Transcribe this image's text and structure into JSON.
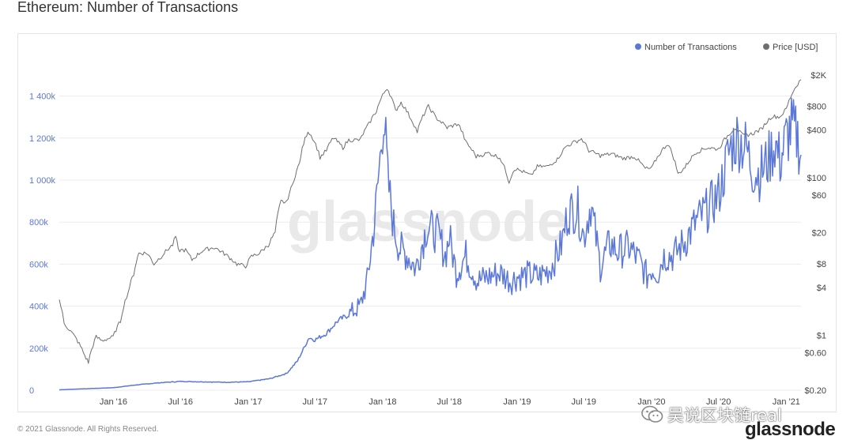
{
  "page": {
    "title": "Ethereum: Number of Transactions",
    "footer_copyright": "© 2021 Glassnode. All Rights Reserved.",
    "footer_logo": "glassnode",
    "watermark": "glassnode",
    "wechat_overlay": "吴说区块链real"
  },
  "colors": {
    "transactions": "#5b78d8",
    "price": "#6e6e6e",
    "grid": "#ececec",
    "left_axis_text": "#5b78d8",
    "right_axis_text": "#444444",
    "watermark": "#e9e9e9"
  },
  "chart_data": {
    "type": "line",
    "title": "Ethereum: Number of Transactions",
    "legend": {
      "placement": "top-right",
      "entries": [
        {
          "label": "Number of Transactions",
          "color": "#5b78d8",
          "marker": "dot"
        },
        {
          "label": "Price [USD]",
          "color": "#6e6e6e",
          "marker": "dot"
        }
      ]
    },
    "grid": true,
    "x_axis": {
      "type": "date",
      "range": [
        "2015-08-07",
        "2021-02-10"
      ],
      "ticks": [
        {
          "date": "2016-01-01",
          "label": "Jan '16"
        },
        {
          "date": "2016-07-01",
          "label": "Jul '16"
        },
        {
          "date": "2017-01-01",
          "label": "Jan '17"
        },
        {
          "date": "2017-07-01",
          "label": "Jul '17"
        },
        {
          "date": "2018-01-01",
          "label": "Jan '18"
        },
        {
          "date": "2018-07-01",
          "label": "Jul '18"
        },
        {
          "date": "2019-01-01",
          "label": "Jan '19"
        },
        {
          "date": "2019-07-01",
          "label": "Jul '19"
        },
        {
          "date": "2020-01-01",
          "label": "Jan '20"
        },
        {
          "date": "2020-07-01",
          "label": "Jul '20"
        },
        {
          "date": "2021-01-01",
          "label": "Jan '21"
        }
      ]
    },
    "y_left": {
      "scale": "linear",
      "range": [
        0,
        1500000
      ],
      "ticks": [
        {
          "value": 0,
          "label": "0"
        },
        {
          "value": 200000,
          "label": "200k"
        },
        {
          "value": 400000,
          "label": "400k"
        },
        {
          "value": 600000,
          "label": "600k"
        },
        {
          "value": 800000,
          "label": "800k"
        },
        {
          "value": 1000000,
          "label": "1 000k"
        },
        {
          "value": 1200000,
          "label": "1 200k"
        },
        {
          "value": 1400000,
          "label": "1 400k"
        }
      ]
    },
    "y_right": {
      "scale": "log",
      "range": [
        0.2,
        2000
      ],
      "ticks": [
        {
          "value": 0.2,
          "label": "$0.20"
        },
        {
          "value": 0.6,
          "label": "$0.60"
        },
        {
          "value": 1,
          "label": "$1"
        },
        {
          "value": 4,
          "label": "$4"
        },
        {
          "value": 8,
          "label": "$8"
        },
        {
          "value": 20,
          "label": "$20"
        },
        {
          "value": 60,
          "label": "$60"
        },
        {
          "value": 100,
          "label": "$100"
        },
        {
          "value": 400,
          "label": "$400"
        },
        {
          "value": 800,
          "label": "$800"
        },
        {
          "value": 2000,
          "label": "$2K"
        }
      ]
    },
    "series": [
      {
        "name": "Number of Transactions",
        "axis": "left",
        "color": "#5b78d8",
        "points": [
          [
            "2015-08-07",
            2000
          ],
          [
            "2015-10-01",
            6000
          ],
          [
            "2016-01-01",
            12000
          ],
          [
            "2016-03-01",
            25000
          ],
          [
            "2016-05-01",
            35000
          ],
          [
            "2016-07-01",
            42000
          ],
          [
            "2016-09-01",
            40000
          ],
          [
            "2016-11-01",
            38000
          ],
          [
            "2017-01-01",
            40000
          ],
          [
            "2017-03-01",
            55000
          ],
          [
            "2017-04-15",
            80000
          ],
          [
            "2017-05-15",
            140000
          ],
          [
            "2017-06-15",
            250000
          ],
          [
            "2017-07-01",
            240000
          ],
          [
            "2017-08-01",
            270000
          ],
          [
            "2017-09-01",
            330000
          ],
          [
            "2017-10-01",
            360000
          ],
          [
            "2017-11-01",
            400000
          ],
          [
            "2017-11-20",
            520000
          ],
          [
            "2017-12-10",
            800000
          ],
          [
            "2017-12-25",
            1100000
          ],
          [
            "2018-01-04",
            1340000
          ],
          [
            "2018-01-15",
            1000000
          ],
          [
            "2018-01-31",
            780000
          ],
          [
            "2018-02-15",
            680000
          ],
          [
            "2018-03-10",
            640000
          ],
          [
            "2018-04-01",
            580000
          ],
          [
            "2018-05-01",
            780000
          ],
          [
            "2018-06-01",
            740000
          ],
          [
            "2018-06-20",
            640000
          ],
          [
            "2018-07-01",
            730000
          ],
          [
            "2018-07-20",
            560000
          ],
          [
            "2018-08-15",
            640000
          ],
          [
            "2018-09-15",
            520000
          ],
          [
            "2018-10-15",
            540000
          ],
          [
            "2018-11-15",
            560000
          ],
          [
            "2018-12-15",
            520000
          ],
          [
            "2019-01-01",
            540000
          ],
          [
            "2019-02-01",
            550000
          ],
          [
            "2019-03-01",
            540000
          ],
          [
            "2019-04-01",
            580000
          ],
          [
            "2019-05-01",
            690000
          ],
          [
            "2019-05-20",
            850000
          ],
          [
            "2019-06-15",
            860000
          ],
          [
            "2019-07-01",
            730000
          ],
          [
            "2019-07-20",
            890000
          ],
          [
            "2019-08-15",
            590000
          ],
          [
            "2019-09-10",
            700000
          ],
          [
            "2019-10-01",
            660000
          ],
          [
            "2019-11-01",
            680000
          ],
          [
            "2019-12-01",
            610000
          ],
          [
            "2019-12-20",
            540000
          ],
          [
            "2020-01-01",
            580000
          ],
          [
            "2020-01-20",
            560000
          ],
          [
            "2020-02-01",
            640000
          ],
          [
            "2020-03-01",
            640000
          ],
          [
            "2020-04-01",
            710000
          ],
          [
            "2020-05-01",
            800000
          ],
          [
            "2020-06-01",
            860000
          ],
          [
            "2020-07-01",
            930000
          ],
          [
            "2020-08-01",
            1150000
          ],
          [
            "2020-08-20",
            1200000
          ],
          [
            "2020-09-15",
            1150000
          ],
          [
            "2020-10-01",
            1050000
          ],
          [
            "2020-10-20",
            1030000
          ],
          [
            "2020-11-15",
            1100000
          ],
          [
            "2020-12-01",
            1180000
          ],
          [
            "2020-12-15",
            1090000
          ],
          [
            "2021-01-01",
            1200000
          ],
          [
            "2021-01-15",
            1250000
          ],
          [
            "2021-02-01",
            1200000
          ],
          [
            "2021-02-10",
            1120000
          ]
        ]
      },
      {
        "name": "Price [USD]",
        "axis": "right",
        "color": "#6e6e6e",
        "points": [
          [
            "2015-08-07",
            2.8
          ],
          [
            "2015-08-20",
            1.4
          ],
          [
            "2015-09-15",
            1.0
          ],
          [
            "2015-10-15",
            0.55
          ],
          [
            "2015-10-25",
            0.45
          ],
          [
            "2015-11-15",
            0.95
          ],
          [
            "2015-12-01",
            0.85
          ],
          [
            "2015-12-31",
            0.95
          ],
          [
            "2016-01-20",
            1.5
          ],
          [
            "2016-02-10",
            3.5
          ],
          [
            "2016-02-25",
            6.0
          ],
          [
            "2016-03-10",
            11.0
          ],
          [
            "2016-04-01",
            11.0
          ],
          [
            "2016-04-20",
            8.0
          ],
          [
            "2016-05-10",
            10.0
          ],
          [
            "2016-06-10",
            14.0
          ],
          [
            "2016-06-18",
            18.0
          ],
          [
            "2016-06-25",
            12.0
          ],
          [
            "2016-07-15",
            12.0
          ],
          [
            "2016-08-01",
            9.0
          ],
          [
            "2016-09-01",
            12.0
          ],
          [
            "2016-10-01",
            13.0
          ],
          [
            "2016-11-01",
            10.5
          ],
          [
            "2016-12-01",
            8.0
          ],
          [
            "2016-12-25",
            7.5
          ],
          [
            "2017-01-10",
            10.0
          ],
          [
            "2017-02-01",
            11.0
          ],
          [
            "2017-02-25",
            14.0
          ],
          [
            "2017-03-15",
            20.0
          ],
          [
            "2017-03-31",
            50.0
          ],
          [
            "2017-04-15",
            48.0
          ],
          [
            "2017-05-01",
            80.0
          ],
          [
            "2017-05-20",
            150.0
          ],
          [
            "2017-06-12",
            390.0
          ],
          [
            "2017-06-25",
            320.0
          ],
          [
            "2017-07-15",
            180.0
          ],
          [
            "2017-08-01",
            220.0
          ],
          [
            "2017-08-20",
            320.0
          ],
          [
            "2017-09-15",
            240.0
          ],
          [
            "2017-10-01",
            300.0
          ],
          [
            "2017-11-01",
            300.0
          ],
          [
            "2017-11-25",
            480.0
          ],
          [
            "2017-12-15",
            700.0
          ],
          [
            "2018-01-13",
            1380.0
          ],
          [
            "2018-02-05",
            700.0
          ],
          [
            "2018-02-20",
            900.0
          ],
          [
            "2018-03-15",
            600.0
          ],
          [
            "2018-04-05",
            380.0
          ],
          [
            "2018-05-05",
            800.0
          ],
          [
            "2018-05-25",
            580.0
          ],
          [
            "2018-06-25",
            430.0
          ],
          [
            "2018-07-25",
            480.0
          ],
          [
            "2018-08-15",
            280.0
          ],
          [
            "2018-09-12",
            185.0
          ],
          [
            "2018-10-15",
            205.0
          ],
          [
            "2018-11-15",
            180.0
          ],
          [
            "2018-12-10",
            88.0
          ],
          [
            "2018-12-25",
            130.0
          ],
          [
            "2019-01-15",
            120.0
          ],
          [
            "2019-02-08",
            105.0
          ],
          [
            "2019-02-25",
            138.0
          ],
          [
            "2019-03-25",
            138.0
          ],
          [
            "2019-04-20",
            170.0
          ],
          [
            "2019-05-15",
            250.0
          ],
          [
            "2019-06-25",
            310.0
          ],
          [
            "2019-07-15",
            220.0
          ],
          [
            "2019-08-15",
            190.0
          ],
          [
            "2019-09-15",
            200.0
          ],
          [
            "2019-10-15",
            175.0
          ],
          [
            "2019-11-15",
            185.0
          ],
          [
            "2019-12-15",
            130.0
          ],
          [
            "2020-01-01",
            130.0
          ],
          [
            "2020-02-14",
            270.0
          ],
          [
            "2020-03-13",
            110.0
          ],
          [
            "2020-04-01",
            135.0
          ],
          [
            "2020-05-01",
            210.0
          ],
          [
            "2020-06-01",
            240.0
          ],
          [
            "2020-07-01",
            230.0
          ],
          [
            "2020-08-15",
            430.0
          ],
          [
            "2020-09-05",
            340.0
          ],
          [
            "2020-10-01",
            360.0
          ],
          [
            "2020-10-25",
            410.0
          ],
          [
            "2020-11-23",
            600.0
          ],
          [
            "2020-12-15",
            590.0
          ],
          [
            "2021-01-01",
            740.0
          ],
          [
            "2021-01-20",
            1250.0
          ],
          [
            "2021-02-05",
            1650.0
          ],
          [
            "2021-02-10",
            1750.0
          ]
        ]
      }
    ]
  }
}
